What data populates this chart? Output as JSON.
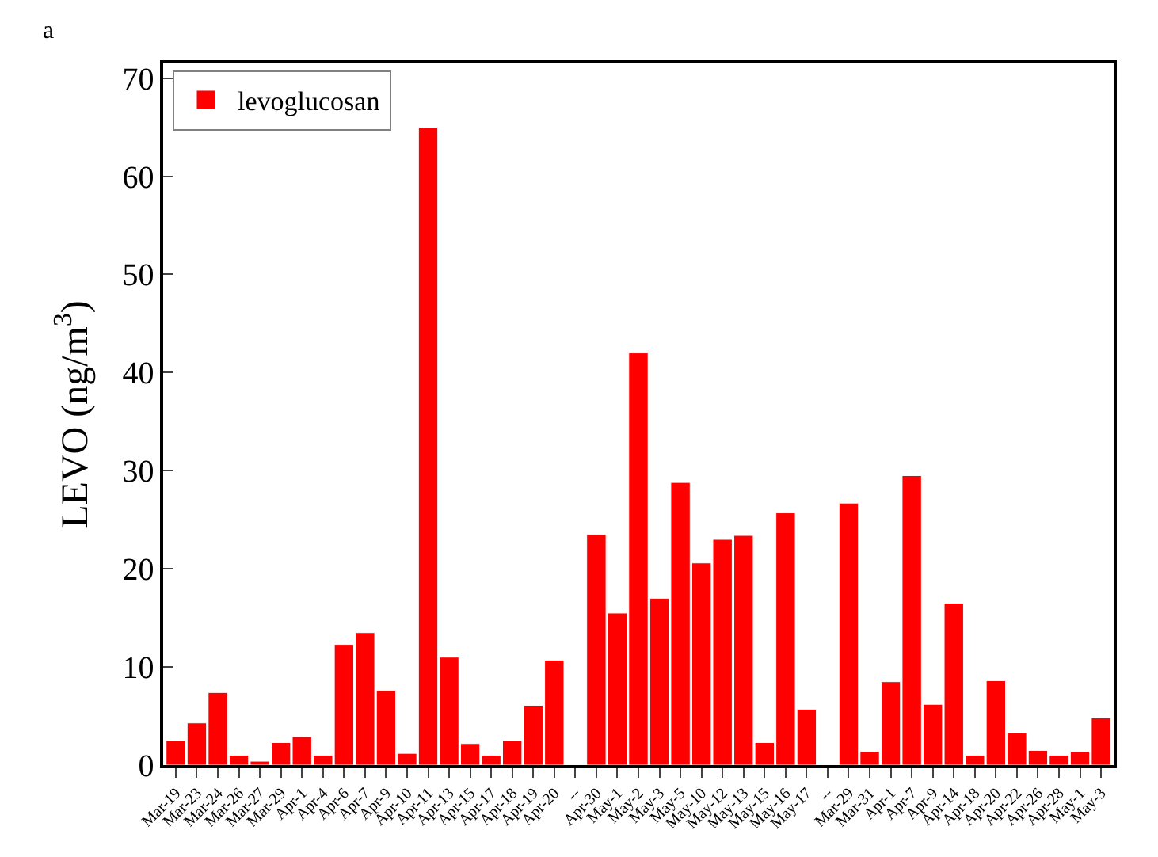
{
  "chart_data": {
    "type": "bar",
    "annotations": [
      "a"
    ],
    "ylabel": "LEVO (ng/m$^{3}$)",
    "categories": [
      "Mar-19",
      "Mar-23",
      "Mar-24",
      "Mar-26",
      "Mar-27",
      "Mar-29",
      "Apr-1",
      "Apr-4",
      "Apr-6",
      "Apr-7",
      "Apr-9",
      "Apr-10",
      "Apr-11",
      "Apr-13",
      "Apr-15",
      "Apr-17",
      "Apr-18",
      "Apr-19",
      "Apr-20",
      "--",
      "Apr-30",
      "May-1",
      "May-2",
      "May-3",
      "May-5",
      "May-10",
      "May-12",
      "May-13",
      "May-15",
      "May-16",
      "May-17",
      "--",
      "Mar-29",
      "Mar-31",
      "Apr-1",
      "Apr-7",
      "Apr-9",
      "Apr-14",
      "Apr-18",
      "Apr-20",
      "Apr-22",
      "Apr-26",
      "Apr-28",
      "May-1",
      "May-3"
    ],
    "series": [
      {
        "name": "levoglucosan",
        "color": "#ff0000",
        "values": [
          2.5,
          4.3,
          7.4,
          1.0,
          0.4,
          2.3,
          2.9,
          1.0,
          12.3,
          13.5,
          7.6,
          1.2,
          65,
          11,
          2.2,
          1.0,
          2.5,
          6.1,
          10.7,
          null,
          23.5,
          15.5,
          42,
          17,
          28.8,
          20.6,
          23,
          23.4,
          2.3,
          25.7,
          5.7,
          null,
          26.7,
          1.4,
          8.5,
          29.5,
          6.2,
          16.5,
          1.0,
          8.6,
          3.3,
          1.5,
          1.0,
          1.4,
          4.8
        ]
      }
    ],
    "ylim": [
      0,
      71.5
    ],
    "yticks": [
      0,
      10,
      20,
      30,
      40,
      50,
      60,
      70
    ],
    "legend": "top left"
  }
}
